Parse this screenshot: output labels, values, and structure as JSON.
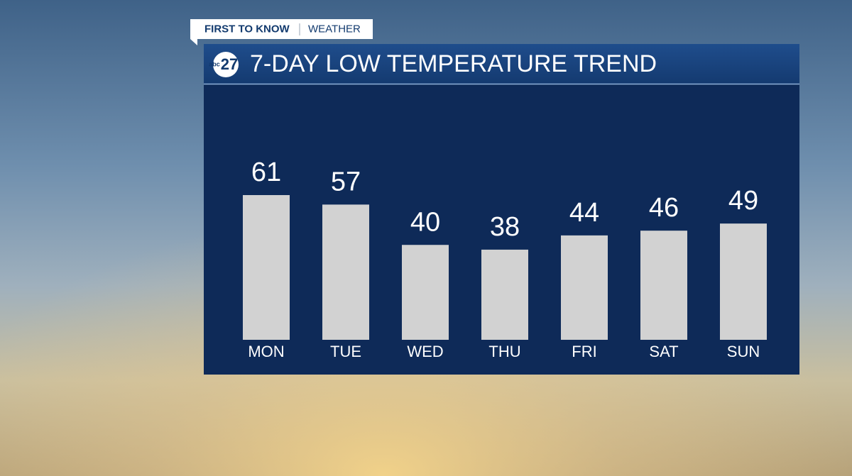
{
  "branding": {
    "tag": "FIRST TO KNOW",
    "section": "WEATHER",
    "logo_network": "abc",
    "logo_channel": "27"
  },
  "chart_data": {
    "type": "bar",
    "title": "7-DAY LOW TEMPERATURE TREND",
    "categories": [
      "MON",
      "TUE",
      "WED",
      "THU",
      "FRI",
      "SAT",
      "SUN"
    ],
    "values": [
      61,
      57,
      40,
      38,
      44,
      46,
      49
    ],
    "color": "#d2d2d2"
  }
}
